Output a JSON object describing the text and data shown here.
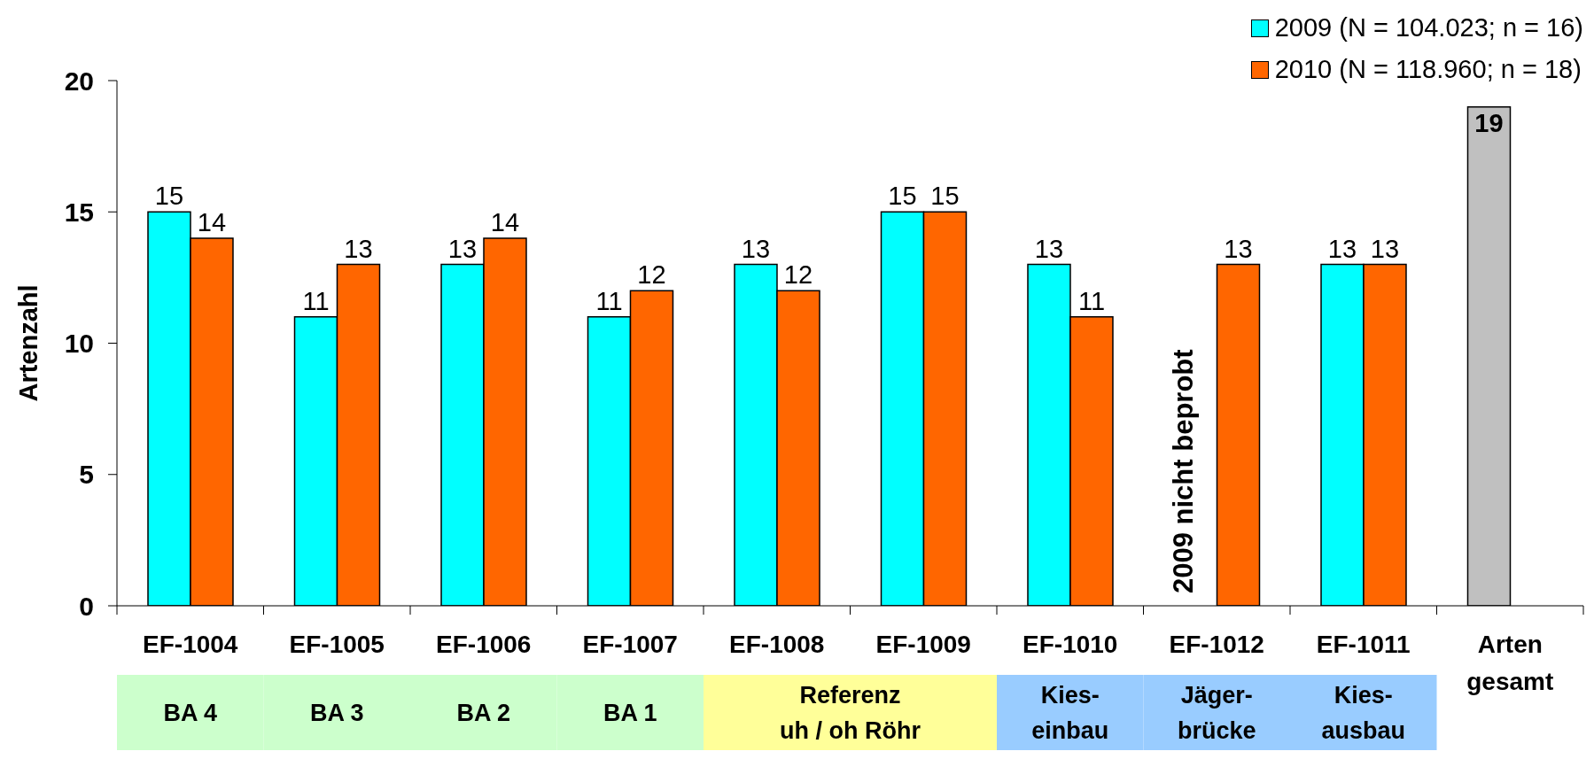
{
  "chart_data": {
    "type": "bar",
    "categories": [
      "EF-1004",
      "EF-1005",
      "EF-1006",
      "EF-1007",
      "EF-1008",
      "EF-1009",
      "EF-1010",
      "EF-1012",
      "EF-1011",
      "Arten\ngesamt"
    ],
    "series": [
      {
        "name": "2009 (N = 104.023; n = 16)",
        "color": "#00ffff",
        "values": [
          15,
          11,
          13,
          11,
          13,
          15,
          13,
          null,
          13,
          19
        ],
        "colors": [
          "#00ffff",
          "#00ffff",
          "#00ffff",
          "#00ffff",
          "#00ffff",
          "#00ffff",
          "#00ffff",
          "#00ffff",
          "#00ffff",
          "#c0c0c0"
        ]
      },
      {
        "name": "2010 (N = 118.960; n = 18)",
        "color": "#ff6600",
        "values": [
          14,
          13,
          14,
          12,
          12,
          15,
          11,
          13,
          13,
          null
        ]
      }
    ],
    "ylabel": "Artenzahl",
    "ylim": [
      0,
      20
    ],
    "yticks": [
      0,
      5,
      10,
      15,
      20
    ],
    "legend": "top right",
    "data_labels": true,
    "annotations": [
      {
        "text": "2009 nicht beprobt",
        "x": "EF-1012"
      },
      "BA 4",
      "BA 3",
      "BA 2",
      "BA 1",
      "Referenz\nuh / oh Röhr",
      "Kies-\neinbau",
      "Jäger-\nbrücke",
      "Kies-\nausbau"
    ]
  }
}
